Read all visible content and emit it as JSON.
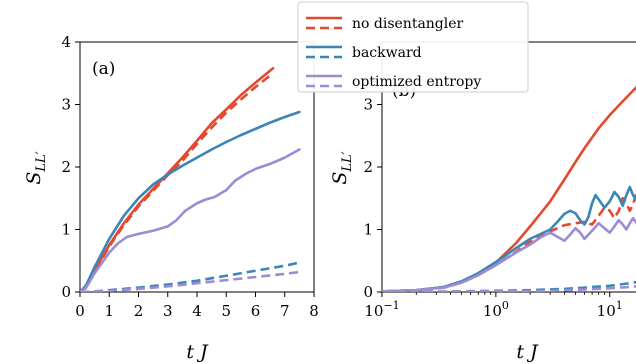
{
  "colors": {
    "red": "#e2492f",
    "blue": "#3b86b6",
    "purple": "#9c8cd4"
  },
  "legend": {
    "items": [
      {
        "label": "no disentangler",
        "color": "red"
      },
      {
        "label": "backward",
        "color": "blue"
      },
      {
        "label": "optimized entropy",
        "color": "purple"
      }
    ]
  },
  "chart_data": [
    {
      "type": "line",
      "panel_label": "(a)",
      "xlabel": "t J",
      "ylabel": "S_LL'",
      "xlim": [
        0,
        8
      ],
      "ylim": [
        0,
        4
      ],
      "xscale": "linear",
      "xticks": [
        0,
        1,
        2,
        3,
        4,
        5,
        6,
        7,
        8
      ],
      "yticks": [
        0,
        1,
        2,
        3,
        4
      ],
      "series": [
        {
          "color": "red",
          "style": "solid",
          "points": [
            [
              0,
              0
            ],
            [
              0.2,
              0.08
            ],
            [
              0.5,
              0.35
            ],
            [
              1,
              0.75
            ],
            [
              1.5,
              1.1
            ],
            [
              2,
              1.4
            ],
            [
              2.5,
              1.65
            ],
            [
              3,
              1.9
            ],
            [
              3.5,
              2.15
            ],
            [
              4,
              2.42
            ],
            [
              4.5,
              2.7
            ],
            [
              5,
              2.92
            ],
            [
              5.5,
              3.15
            ],
            [
              6,
              3.35
            ],
            [
              6.6,
              3.58
            ]
          ]
        },
        {
          "color": "red",
          "style": "dashed",
          "points": [
            [
              0,
              0
            ],
            [
              0.2,
              0.07
            ],
            [
              0.5,
              0.33
            ],
            [
              1,
              0.73
            ],
            [
              1.5,
              1.07
            ],
            [
              2,
              1.37
            ],
            [
              2.5,
              1.62
            ],
            [
              3,
              1.87
            ],
            [
              3.5,
              2.1
            ],
            [
              4,
              2.37
            ],
            [
              4.5,
              2.63
            ],
            [
              5,
              2.87
            ],
            [
              5.5,
              3.08
            ],
            [
              6,
              3.28
            ],
            [
              6.6,
              3.5
            ]
          ]
        },
        {
          "color": "blue",
          "style": "solid",
          "points": [
            [
              0,
              0
            ],
            [
              0.2,
              0.1
            ],
            [
              0.5,
              0.4
            ],
            [
              1,
              0.85
            ],
            [
              1.5,
              1.22
            ],
            [
              2,
              1.5
            ],
            [
              2.5,
              1.72
            ],
            [
              3,
              1.88
            ],
            [
              3.5,
              2.02
            ],
            [
              4,
              2.15
            ],
            [
              4.5,
              2.28
            ],
            [
              5,
              2.4
            ],
            [
              5.5,
              2.51
            ],
            [
              6,
              2.61
            ],
            [
              6.5,
              2.71
            ],
            [
              7,
              2.8
            ],
            [
              7.5,
              2.88
            ]
          ]
        },
        {
          "color": "blue",
          "style": "dashed",
          "points": [
            [
              0,
              0
            ],
            [
              0.5,
              0.01
            ],
            [
              1,
              0.03
            ],
            [
              2,
              0.07
            ],
            [
              3,
              0.12
            ],
            [
              4,
              0.18
            ],
            [
              5,
              0.26
            ],
            [
              6,
              0.34
            ],
            [
              7,
              0.42
            ],
            [
              7.5,
              0.47
            ]
          ]
        },
        {
          "color": "purple",
          "style": "solid",
          "points": [
            [
              0,
              0
            ],
            [
              0.2,
              0.06
            ],
            [
              0.5,
              0.3
            ],
            [
              1,
              0.63
            ],
            [
              1.3,
              0.78
            ],
            [
              1.6,
              0.88
            ],
            [
              2,
              0.93
            ],
            [
              2.5,
              0.98
            ],
            [
              3,
              1.05
            ],
            [
              3.3,
              1.15
            ],
            [
              3.6,
              1.3
            ],
            [
              4,
              1.42
            ],
            [
              4.3,
              1.48
            ],
            [
              4.6,
              1.52
            ],
            [
              5,
              1.63
            ],
            [
              5.3,
              1.78
            ],
            [
              5.7,
              1.9
            ],
            [
              6,
              1.97
            ],
            [
              6.5,
              2.05
            ],
            [
              7,
              2.15
            ],
            [
              7.5,
              2.28
            ]
          ]
        },
        {
          "color": "purple",
          "style": "dashed",
          "points": [
            [
              0,
              0
            ],
            [
              1,
              0.02
            ],
            [
              2,
              0.05
            ],
            [
              3,
              0.09
            ],
            [
              4,
              0.14
            ],
            [
              5,
              0.19
            ],
            [
              6,
              0.24
            ],
            [
              7,
              0.29
            ],
            [
              7.5,
              0.32
            ]
          ]
        }
      ]
    },
    {
      "type": "line",
      "panel_label": "(b)",
      "xlabel": "t J",
      "ylabel": "S_LL'",
      "xlim": [
        0.1,
        20
      ],
      "ylim": [
        0,
        4
      ],
      "xscale": "log",
      "xticks": [
        0.1,
        1,
        10
      ],
      "xtick_labels": [
        {
          "base": "10",
          "exp": "−1"
        },
        {
          "base": "10",
          "exp": "0"
        },
        {
          "base": "10",
          "exp": "1"
        }
      ],
      "yticks": [
        0,
        1,
        2,
        3
      ],
      "series": [
        {
          "color": "red",
          "style": "solid",
          "points": [
            [
              0.1,
              0.01
            ],
            [
              0.2,
              0.03
            ],
            [
              0.35,
              0.08
            ],
            [
              0.5,
              0.17
            ],
            [
              0.7,
              0.3
            ],
            [
              1,
              0.47
            ],
            [
              1.5,
              0.78
            ],
            [
              2,
              1.05
            ],
            [
              3,
              1.45
            ],
            [
              4,
              1.8
            ],
            [
              5,
              2.08
            ],
            [
              6,
              2.3
            ],
            [
              8,
              2.62
            ],
            [
              10,
              2.83
            ],
            [
              13,
              3.05
            ],
            [
              16,
              3.22
            ],
            [
              20,
              3.4
            ]
          ]
        },
        {
          "color": "red",
          "style": "dashed",
          "points": [
            [
              0.1,
              0.01
            ],
            [
              0.2,
              0.03
            ],
            [
              0.35,
              0.07
            ],
            [
              0.5,
              0.15
            ],
            [
              0.7,
              0.27
            ],
            [
              1,
              0.43
            ],
            [
              1.5,
              0.64
            ],
            [
              2,
              0.8
            ],
            [
              3,
              0.97
            ],
            [
              4,
              1.07
            ],
            [
              5,
              1.1
            ],
            [
              6,
              1.12
            ],
            [
              7,
              1.08
            ],
            [
              8,
              1.22
            ],
            [
              9,
              1.35
            ],
            [
              10,
              1.3
            ],
            [
              11,
              1.18
            ],
            [
              12,
              1.3
            ],
            [
              13,
              1.5
            ],
            [
              14,
              1.42
            ],
            [
              15,
              1.3
            ],
            [
              16,
              1.4
            ],
            [
              17,
              1.55
            ],
            [
              18,
              1.48
            ],
            [
              20,
              1.45
            ]
          ]
        },
        {
          "color": "blue",
          "style": "solid",
          "points": [
            [
              0.1,
              0.01
            ],
            [
              0.2,
              0.03
            ],
            [
              0.35,
              0.08
            ],
            [
              0.5,
              0.17
            ],
            [
              0.7,
              0.3
            ],
            [
              1,
              0.48
            ],
            [
              1.5,
              0.7
            ],
            [
              2,
              0.85
            ],
            [
              3,
              1.0
            ],
            [
              3.5,
              1.13
            ],
            [
              4,
              1.25
            ],
            [
              4.5,
              1.3
            ],
            [
              5,
              1.26
            ],
            [
              5.5,
              1.15
            ],
            [
              6,
              1.08
            ],
            [
              6.5,
              1.2
            ],
            [
              7,
              1.42
            ],
            [
              7.5,
              1.55
            ],
            [
              8,
              1.48
            ],
            [
              9,
              1.35
            ],
            [
              10,
              1.45
            ],
            [
              11,
              1.6
            ],
            [
              12,
              1.52
            ],
            [
              13,
              1.38
            ],
            [
              14,
              1.55
            ],
            [
              15,
              1.68
            ],
            [
              16,
              1.55
            ],
            [
              17,
              1.48
            ],
            [
              18,
              1.62
            ],
            [
              19,
              1.7
            ],
            [
              20,
              1.58
            ]
          ]
        },
        {
          "color": "blue",
          "style": "dashed",
          "points": [
            [
              0.1,
              0.0
            ],
            [
              0.5,
              0.01
            ],
            [
              1,
              0.02
            ],
            [
              2,
              0.03
            ],
            [
              4,
              0.05
            ],
            [
              6,
              0.07
            ],
            [
              10,
              0.1
            ],
            [
              15,
              0.14
            ],
            [
              20,
              0.18
            ]
          ]
        },
        {
          "color": "purple",
          "style": "solid",
          "points": [
            [
              0.1,
              0.01
            ],
            [
              0.2,
              0.03
            ],
            [
              0.35,
              0.07
            ],
            [
              0.5,
              0.15
            ],
            [
              0.7,
              0.27
            ],
            [
              1,
              0.43
            ],
            [
              1.5,
              0.63
            ],
            [
              2,
              0.76
            ],
            [
              2.5,
              0.88
            ],
            [
              3,
              0.95
            ],
            [
              3.5,
              0.88
            ],
            [
              4,
              0.82
            ],
            [
              4.5,
              0.92
            ],
            [
              5,
              1.02
            ],
            [
              5.5,
              0.95
            ],
            [
              6,
              0.85
            ],
            [
              7,
              0.98
            ],
            [
              8,
              1.1
            ],
            [
              9,
              1.02
            ],
            [
              10,
              0.95
            ],
            [
              11,
              1.05
            ],
            [
              12,
              1.15
            ],
            [
              13,
              1.08
            ],
            [
              14,
              1.0
            ],
            [
              15,
              1.1
            ],
            [
              16,
              1.18
            ],
            [
              17,
              1.12
            ],
            [
              18,
              1.05
            ],
            [
              20,
              1.1
            ]
          ]
        },
        {
          "color": "purple",
          "style": "dashed",
          "points": [
            [
              0.1,
              0.0
            ],
            [
              1,
              0.01
            ],
            [
              3,
              0.02
            ],
            [
              6,
              0.04
            ],
            [
              10,
              0.06
            ],
            [
              15,
              0.08
            ],
            [
              20,
              0.1
            ]
          ]
        }
      ]
    }
  ]
}
